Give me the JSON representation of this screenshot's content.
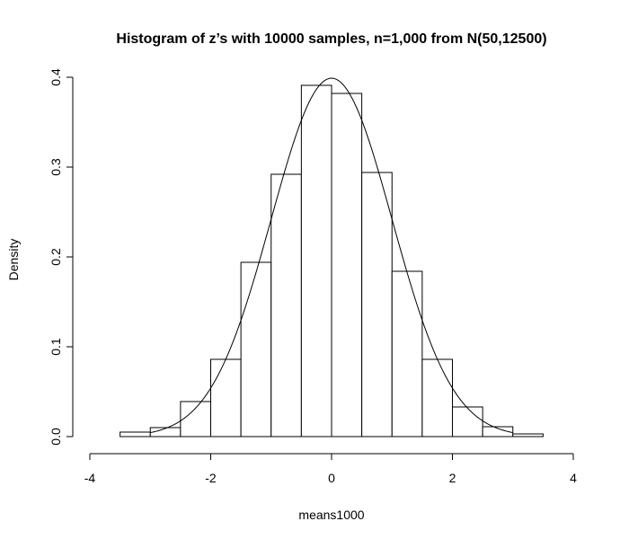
{
  "chart_data": {
    "type": "bar",
    "title": "Histogram of z’s with 10000 samples, n=1,000 from N(50,12500)",
    "xlabel": "means1000",
    "ylabel": "Density",
    "xlim": [
      -4,
      4
    ],
    "ylim": [
      0,
      0.4
    ],
    "x_ticks": [
      -4,
      -2,
      0,
      2,
      4
    ],
    "y_ticks": [
      0.0,
      0.1,
      0.2,
      0.3,
      0.4
    ],
    "x_tick_labels": [
      "-4",
      "-2",
      "0",
      "2",
      "4"
    ],
    "y_tick_labels": [
      "0.0",
      "0.1",
      "0.2",
      "0.3",
      "0.4"
    ],
    "bins": [
      {
        "start": -3.5,
        "end": -3.0,
        "density": 0.005
      },
      {
        "start": -3.0,
        "end": -2.5,
        "density": 0.01
      },
      {
        "start": -2.5,
        "end": -2.0,
        "density": 0.039
      },
      {
        "start": -2.0,
        "end": -1.5,
        "density": 0.086
      },
      {
        "start": -1.5,
        "end": -1.0,
        "density": 0.194
      },
      {
        "start": -1.0,
        "end": -0.5,
        "density": 0.292
      },
      {
        "start": -0.5,
        "end": 0.0,
        "density": 0.391
      },
      {
        "start": 0.0,
        "end": 0.5,
        "density": 0.382
      },
      {
        "start": 0.5,
        "end": 1.0,
        "density": 0.294
      },
      {
        "start": 1.0,
        "end": 1.5,
        "density": 0.184
      },
      {
        "start": 1.5,
        "end": 2.0,
        "density": 0.086
      },
      {
        "start": 2.0,
        "end": 2.5,
        "density": 0.033
      },
      {
        "start": 2.5,
        "end": 3.0,
        "density": 0.011
      },
      {
        "start": 3.0,
        "end": 3.5,
        "density": 0.003
      }
    ],
    "overlay_curve": {
      "type": "line",
      "distribution": "standard normal density",
      "mean": 0,
      "sd": 1,
      "x_range": [
        -3,
        3
      ]
    }
  }
}
